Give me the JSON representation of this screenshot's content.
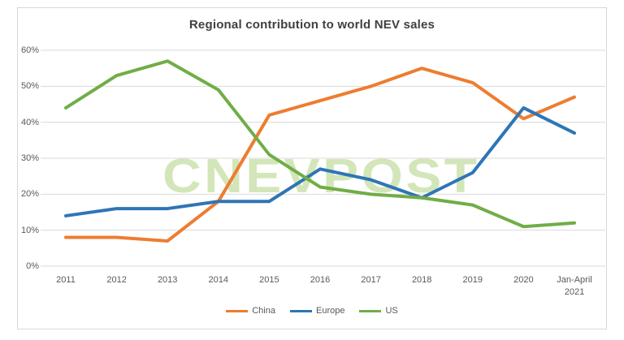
{
  "title": "Regional contribution to world NEV sales",
  "watermark": "CNEVPOST",
  "colors": {
    "china": "#ED7D31",
    "europe": "#2E75B6",
    "us": "#70AD47",
    "title_text": "#404040",
    "axis_text": "#595959",
    "gridline": "#D9D9D9",
    "watermark": "#A9CE76",
    "frame_border": "#D9D9D9",
    "background": "#FFFFFF"
  },
  "chart_data": {
    "type": "line",
    "title": "Regional contribution to world NEV sales",
    "categories": [
      "2011",
      "2012",
      "2013",
      "2014",
      "2015",
      "2016",
      "2017",
      "2018",
      "2019",
      "2020",
      "Jan-April 2021"
    ],
    "series": [
      {
        "name": "China",
        "color": "#ED7D31",
        "values": [
          8,
          8,
          7,
          18,
          42,
          46,
          50,
          55,
          51,
          41,
          47
        ]
      },
      {
        "name": "Europe",
        "color": "#2E75B6",
        "values": [
          14,
          16,
          16,
          18,
          18,
          27,
          24,
          19,
          26,
          44,
          37
        ]
      },
      {
        "name": "US",
        "color": "#70AD47",
        "values": [
          44,
          53,
          57,
          49,
          31,
          22,
          20,
          19,
          17,
          11,
          12
        ]
      }
    ],
    "xlabel": "",
    "ylabel": "",
    "ylim": [
      0,
      60
    ],
    "y_tick_step": 10,
    "y_ticks": [
      "0%",
      "10%",
      "20%",
      "30%",
      "40%",
      "50%",
      "60%"
    ],
    "grid": true,
    "legend_position": "bottom",
    "watermark": "CNEVPOST"
  }
}
